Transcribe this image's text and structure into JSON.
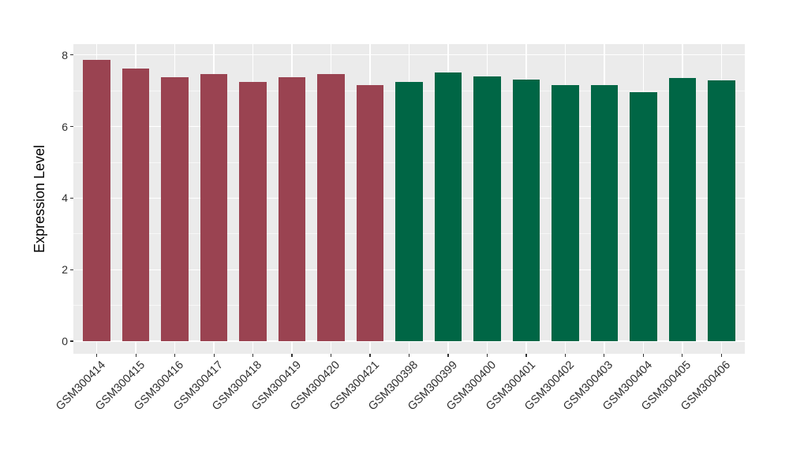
{
  "figure": {
    "background_color": "#ffffff",
    "panel_background_color": "#EBEBEB",
    "grid_color": "#ffffff",
    "tick_color": "#333333",
    "axis_text_color": "#2f2f2f"
  },
  "chart_data": {
    "type": "bar",
    "title": "",
    "xlabel": "",
    "ylabel": "Expression Level",
    "legend": "none",
    "grid": true,
    "ylim": [
      0,
      8.3
    ],
    "yticks": [
      0,
      2,
      4,
      6,
      8
    ],
    "yticks_minor": [
      1,
      3,
      5,
      7
    ],
    "categories": [
      "GSM300414",
      "GSM300415",
      "GSM300416",
      "GSM300417",
      "GSM300418",
      "GSM300419",
      "GSM300420",
      "GSM300421",
      "GSM300398",
      "GSM300399",
      "GSM300400",
      "GSM300401",
      "GSM300402",
      "GSM300403",
      "GSM300404",
      "GSM300405",
      "GSM300406"
    ],
    "values": [
      7.87,
      7.62,
      7.37,
      7.47,
      7.25,
      7.37,
      7.47,
      7.16,
      7.24,
      7.52,
      7.41,
      7.31,
      7.16,
      7.15,
      6.97,
      7.36,
      7.28
    ],
    "bar_groups": [
      "maroon",
      "maroon",
      "maroon",
      "maroon",
      "maroon",
      "maroon",
      "maroon",
      "maroon",
      "green",
      "green",
      "green",
      "green",
      "green",
      "green",
      "green",
      "green",
      "green"
    ],
    "colors": {
      "maroon": "#9A4351",
      "green": "#006645"
    }
  }
}
